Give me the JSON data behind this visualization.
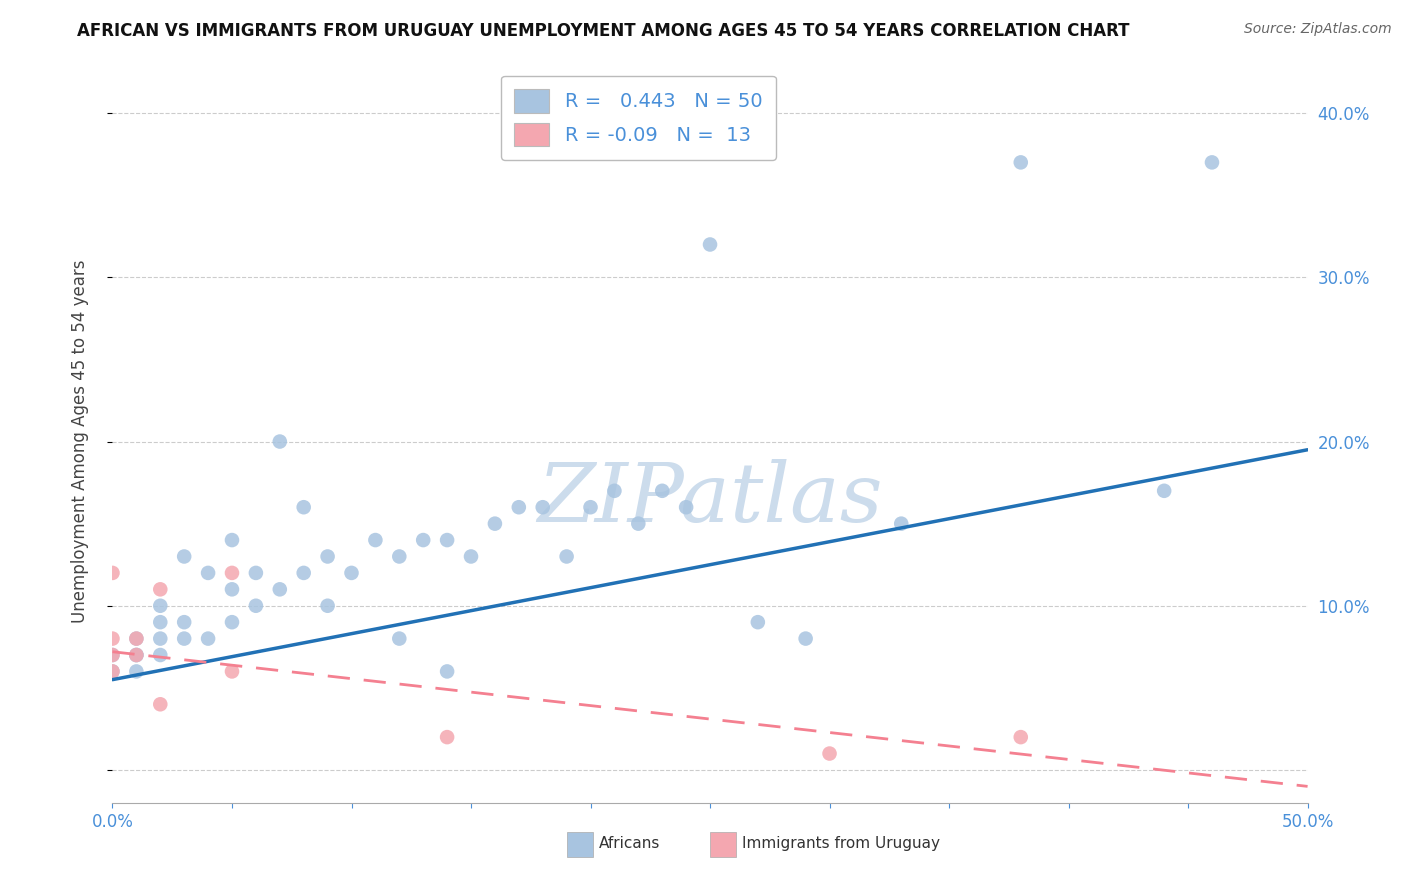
{
  "title": "AFRICAN VS IMMIGRANTS FROM URUGUAY UNEMPLOYMENT AMONG AGES 45 TO 54 YEARS CORRELATION CHART",
  "source": "Source: ZipAtlas.com",
  "ylabel": "Unemployment Among Ages 45 to 54 years",
  "xlim": [
    0,
    0.5
  ],
  "ylim": [
    -0.02,
    0.42
  ],
  "xticks": [
    0.0,
    0.05,
    0.1,
    0.15,
    0.2,
    0.25,
    0.3,
    0.35,
    0.4,
    0.45,
    0.5
  ],
  "yticks": [
    0.0,
    0.1,
    0.2,
    0.3,
    0.4
  ],
  "xtick_labels": [
    "0.0%",
    "",
    "",
    "",
    "",
    "",
    "",
    "",
    "",
    "",
    "50.0%"
  ],
  "ytick_labels_right": [
    "",
    "10.0%",
    "20.0%",
    "30.0%",
    "40.0%"
  ],
  "african_r": 0.443,
  "african_n": 50,
  "uruguay_r": -0.09,
  "uruguay_n": 13,
  "african_color": "#a8c4e0",
  "uruguay_color": "#f4a7b0",
  "trendline_african_color": "#2171b5",
  "trendline_uruguay_color": "#f48090",
  "african_x": [
    0.0,
    0.0,
    0.01,
    0.01,
    0.01,
    0.01,
    0.02,
    0.02,
    0.02,
    0.02,
    0.03,
    0.03,
    0.03,
    0.04,
    0.04,
    0.05,
    0.05,
    0.05,
    0.06,
    0.06,
    0.07,
    0.07,
    0.08,
    0.08,
    0.09,
    0.09,
    0.1,
    0.11,
    0.12,
    0.12,
    0.13,
    0.14,
    0.14,
    0.15,
    0.16,
    0.17,
    0.18,
    0.19,
    0.2,
    0.21,
    0.22,
    0.23,
    0.24,
    0.25,
    0.27,
    0.29,
    0.33,
    0.38,
    0.44,
    0.46
  ],
  "african_y": [
    0.06,
    0.07,
    0.06,
    0.07,
    0.07,
    0.08,
    0.07,
    0.08,
    0.09,
    0.1,
    0.08,
    0.09,
    0.13,
    0.08,
    0.12,
    0.09,
    0.11,
    0.14,
    0.1,
    0.12,
    0.11,
    0.2,
    0.12,
    0.16,
    0.1,
    0.13,
    0.12,
    0.14,
    0.13,
    0.08,
    0.14,
    0.14,
    0.06,
    0.13,
    0.15,
    0.16,
    0.16,
    0.13,
    0.16,
    0.17,
    0.15,
    0.17,
    0.16,
    0.32,
    0.09,
    0.08,
    0.15,
    0.37,
    0.17,
    0.37
  ],
  "uruguay_x": [
    0.0,
    0.0,
    0.0,
    0.0,
    0.01,
    0.01,
    0.02,
    0.02,
    0.05,
    0.05,
    0.14,
    0.3,
    0.38
  ],
  "uruguay_y": [
    0.06,
    0.07,
    0.08,
    0.12,
    0.07,
    0.08,
    0.04,
    0.11,
    0.06,
    0.12,
    0.02,
    0.01,
    0.02
  ],
  "african_trendline_x": [
    0.0,
    0.5
  ],
  "african_trendline_y": [
    0.055,
    0.195
  ],
  "uruguay_trendline_x": [
    0.0,
    0.5
  ],
  "uruguay_trendline_y": [
    0.072,
    -0.01
  ],
  "watermark_text": "ZIPatlas",
  "watermark_fontsize": 60,
  "watermark_color": "#ccdcec",
  "legend_fontsize": 14,
  "title_fontsize": 12,
  "tick_fontsize": 12,
  "ylabel_fontsize": 12
}
